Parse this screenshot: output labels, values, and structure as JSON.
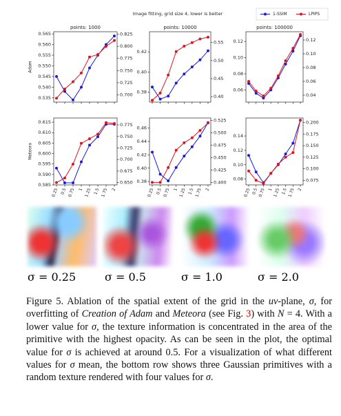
{
  "figure_title": "Image fitting, grid size 4, lower is better",
  "chart_data": [
    {
      "type": "line",
      "title": "points: 1000",
      "ylabel": "Adam",
      "x": [
        0.25,
        0.5,
        0.75,
        1,
        1.25,
        1.5,
        1.75,
        2
      ],
      "series": [
        {
          "name": "1-SSIM",
          "color": "#1a1adb",
          "values": [
            0.545,
            0.538,
            0.534,
            0.54,
            0.549,
            0.555,
            0.56,
            0.564
          ]
        },
        {
          "name": "LPIPS",
          "color": "#e0141c",
          "axis": "y2",
          "values": [
            0.693,
            0.712,
            0.727,
            0.745,
            0.778,
            0.783,
            0.8,
            0.812
          ]
        }
      ],
      "ylim": [
        0.533,
        0.566
      ],
      "yticks": [
        0.535,
        {
          "value": 0.54,
          "label": "0.540"
        },
        0.545,
        {
          "value": 0.55,
          "label": "0.550"
        },
        0.555,
        {
          "value": 0.56,
          "label": "0.560"
        },
        0.565
      ],
      "y2lim": [
        0.685,
        0.83
      ],
      "y2ticks": [
        {
          "value": 0.7,
          "label": "0.700"
        },
        0.725,
        {
          "value": 0.75,
          "label": "0.750"
        },
        0.775,
        {
          "value": 0.8,
          "label": "0.800"
        },
        0.825
      ]
    },
    {
      "type": "line",
      "title": "points: 10000",
      "x": [
        0.25,
        0.5,
        0.75,
        1,
        1.25,
        1.5,
        1.75,
        2
      ],
      "series": [
        {
          "name": "1-SSIM",
          "color": "#1a1adb",
          "values": [
            0.385,
            0.373,
            0.376,
            0.389,
            0.398,
            0.405,
            0.412,
            0.421
          ]
        },
        {
          "name": "LPIPS",
          "color": "#e0141c",
          "axis": "y2",
          "values": [
            0.39,
            0.41,
            0.46,
            0.525,
            0.54,
            0.55,
            0.56,
            0.565
          ]
        }
      ],
      "ylim": [
        0.37,
        0.44
      ],
      "yticks": [
        0.38,
        {
          "value": 0.4,
          "label": "0.40"
        },
        0.42
      ],
      "y2lim": [
        0.385,
        0.58
      ],
      "y2ticks": [
        {
          "value": 0.4,
          "label": "0.40"
        },
        0.45,
        {
          "value": 0.5,
          "label": "0.50"
        },
        0.55
      ]
    },
    {
      "type": "line",
      "title": "points: 100000",
      "x": [
        0.25,
        0.5,
        0.75,
        1,
        1.25,
        1.5,
        1.75,
        2
      ],
      "series": [
        {
          "name": "1-SSIM",
          "color": "#1a1adb",
          "values": [
            0.068,
            0.056,
            0.05,
            0.06,
            0.075,
            0.092,
            0.108,
            0.127
          ]
        },
        {
          "name": "LPIPS",
          "color": "#e0141c",
          "axis": "y2",
          "values": [
            0.06,
            0.046,
            0.039,
            0.05,
            0.068,
            0.09,
            0.108,
            0.128
          ]
        }
      ],
      "ylim": [
        0.045,
        0.132
      ],
      "yticks": [
        0.06,
        0.08,
        {
          "value": 0.1,
          "label": "0.10"
        },
        0.12
      ],
      "y2lim": [
        0.03,
        0.132
      ],
      "y2ticks": [
        0.04,
        0.06,
        0.08,
        {
          "value": 0.1,
          "label": "0.10"
        },
        0.12
      ]
    },
    {
      "type": "line",
      "ylabel": "Meteora",
      "x": [
        0.25,
        0.5,
        0.75,
        1,
        1.25,
        1.5,
        1.75,
        2
      ],
      "series": [
        {
          "name": "1-SSIM",
          "color": "#1a1adb",
          "values": [
            0.593,
            0.586,
            0.586,
            0.596,
            0.604,
            0.608,
            0.614,
            0.614
          ]
        },
        {
          "name": "LPIPS",
          "color": "#e0141c",
          "axis": "y2",
          "values": [
            0.65,
            0.66,
            0.69,
            0.735,
            0.745,
            0.755,
            0.78,
            0.778
          ]
        }
      ],
      "ylim": [
        0.585,
        0.617
      ],
      "yticks": [
        0.585,
        {
          "value": 0.59,
          "label": "0.590"
        },
        0.595,
        {
          "value": 0.6,
          "label": "0.600"
        },
        0.605,
        {
          "value": 0.61,
          "label": "0.610"
        },
        0.615
      ],
      "y2lim": [
        0.645,
        0.79
      ],
      "y2ticks": [
        {
          "value": 0.65,
          "label": "0.650"
        },
        0.675,
        {
          "value": 0.7,
          "label": "0.700"
        },
        0.725,
        {
          "value": 0.75,
          "label": "0.750"
        },
        0.775
      ]
    },
    {
      "type": "line",
      "x": [
        0.25,
        0.5,
        0.75,
        1,
        1.25,
        1.5,
        1.75,
        2
      ],
      "series": [
        {
          "name": "1-SSIM",
          "color": "#1a1adb",
          "values": [
            0.424,
            0.391,
            0.381,
            0.401,
            0.418,
            0.432,
            0.448,
            0.468
          ]
        },
        {
          "name": "LPIPS",
          "color": "#e0141c",
          "axis": "y2",
          "values": [
            0.4,
            0.4,
            0.43,
            0.465,
            0.48,
            0.49,
            0.505,
            0.52
          ]
        }
      ],
      "ylim": [
        0.375,
        0.475
      ],
      "yticks": [
        0.38,
        {
          "value": 0.4,
          "label": "0.40"
        },
        0.42,
        0.44,
        0.46
      ],
      "y2lim": [
        0.395,
        0.53
      ],
      "y2ticks": [
        {
          "value": 0.4,
          "label": "0.400"
        },
        0.425,
        {
          "value": 0.45,
          "label": "0.450"
        },
        0.475,
        {
          "value": 0.5,
          "label": "0.500"
        },
        0.525
      ]
    },
    {
      "type": "line",
      "x": [
        0.25,
        0.5,
        0.75,
        1,
        1.25,
        1.5,
        1.75,
        2
      ],
      "series": [
        {
          "name": "1-SSIM",
          "color": "#1a1adb",
          "values": [
            0.113,
            0.09,
            0.075,
            0.088,
            0.1,
            0.115,
            0.13,
            0.162
          ]
        },
        {
          "name": "LPIPS",
          "color": "#e0141c",
          "axis": "y2",
          "values": [
            0.095,
            0.075,
            0.068,
            0.09,
            0.11,
            0.125,
            0.135,
            0.205
          ]
        }
      ],
      "ylim": [
        0.072,
        0.165
      ],
      "yticks": [
        0.08,
        {
          "value": 0.1,
          "label": "0.10"
        },
        0.12,
        0.14
      ],
      "y2lim": [
        0.065,
        0.21
      ],
      "y2ticks": [
        0.075,
        {
          "value": 0.1,
          "label": "0.100"
        },
        0.125,
        {
          "value": 0.15,
          "label": "0.150"
        },
        0.175,
        {
          "value": 0.2,
          "label": "0.200"
        }
      ]
    }
  ],
  "images": {
    "labels": [
      "σ = 0.25",
      "σ = 0.5",
      "σ = 1.0",
      "σ = 2.0"
    ]
  },
  "caption": [
    {
      "text": "Figure 5. Ablation of the spatial extent of the grid in the "
    },
    {
      "text": "uv",
      "style": "i"
    },
    {
      "text": "-plane, "
    },
    {
      "text": "σ",
      "style": "i"
    },
    {
      "text": ", for overfitting of "
    },
    {
      "text": "Creation of Adam",
      "style": "i"
    },
    {
      "text": " and "
    },
    {
      "text": "Meteora",
      "style": "i"
    },
    {
      "text": " (see Fig. "
    },
    {
      "text": "3",
      "style": "link"
    },
    {
      "text": ") with "
    },
    {
      "text": "N",
      "style": "i"
    },
    {
      "text": " = 4. With a lower value for "
    },
    {
      "text": "σ",
      "style": "i"
    },
    {
      "text": ", the texture information is concentrated in the area of the primitive with the highest opacity. As can be seen in the plot, the optimal value for "
    },
    {
      "text": "σ",
      "style": "i"
    },
    {
      "text": " is achieved at around 0.5. For a visualization of what different values for "
    },
    {
      "text": "σ",
      "style": "i"
    },
    {
      "text": " mean, the bottom row shows three Gaussian primitives with a random texture rendered with four values for "
    },
    {
      "text": "σ",
      "style": "i"
    },
    {
      "text": "."
    }
  ]
}
